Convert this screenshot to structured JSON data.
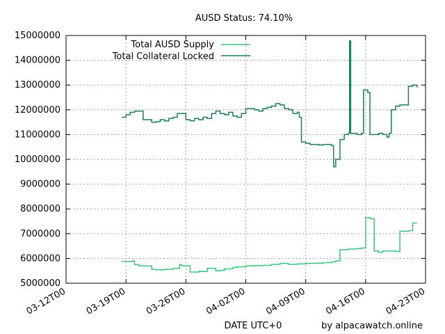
{
  "chart_data": {
    "type": "line",
    "title": "AUSD Status: 74.10%",
    "xlabel": "DATE UTC+0",
    "ylabel": "",
    "credit": "by alpacawatch.online",
    "ylim": [
      5000000,
      15000000
    ],
    "xlim": [
      "2022-03-12",
      "2022-04-23"
    ],
    "y_ticks": [
      "5000000",
      "6000000",
      "7000000",
      "8000000",
      "9000000",
      "10000000",
      "11000000",
      "12000000",
      "13000000",
      "14000000",
      "15000000"
    ],
    "x_ticks": [
      "03-12T00",
      "03-19T00",
      "03-26T00",
      "04-02T00",
      "04-09T00",
      "04-16T00",
      "04-23T00"
    ],
    "grid": true,
    "legend_position": "top-left",
    "series": [
      {
        "name": "Total AUSD Supply",
        "color": "#3cc47c",
        "x": [
          "2022-03-18T12",
          "2022-03-19T18",
          "2022-03-20T00",
          "2022-03-20T12",
          "2022-03-21T06",
          "2022-03-22T00",
          "2022-03-22T12",
          "2022-03-23T12",
          "2022-03-24T12",
          "2022-03-25T06",
          "2022-03-25T12",
          "2022-03-26T12",
          "2022-03-27T12",
          "2022-03-28T00",
          "2022-03-28T12",
          "2022-03-29T12",
          "2022-03-30T00",
          "2022-03-30T12",
          "2022-03-31T12",
          "2022-04-01T00",
          "2022-04-02T00",
          "2022-04-03T00",
          "2022-04-04T00",
          "2022-04-05T00",
          "2022-04-06T00",
          "2022-04-07T00",
          "2022-04-08T00",
          "2022-04-09T00",
          "2022-04-10T00",
          "2022-04-11T00",
          "2022-04-12T00",
          "2022-04-12T12",
          "2022-04-13T00",
          "2022-04-14T00",
          "2022-04-15T00",
          "2022-04-15T12",
          "2022-04-16T00",
          "2022-04-16T12",
          "2022-04-17T00",
          "2022-04-17T12",
          "2022-04-18T00",
          "2022-04-19T00",
          "2022-04-19T12",
          "2022-04-20T00",
          "2022-04-21T00",
          "2022-04-21T12",
          "2022-04-22T00"
        ],
        "y": [
          5880000,
          5900000,
          5750000,
          5700000,
          5700000,
          5560000,
          5540000,
          5560000,
          5600000,
          5750000,
          5700000,
          5450000,
          5480000,
          5470000,
          5600000,
          5500000,
          5520000,
          5580000,
          5640000,
          5660000,
          5700000,
          5710000,
          5720000,
          5760000,
          5800000,
          5760000,
          5780000,
          5800000,
          5810000,
          5830000,
          5860000,
          5900000,
          6350000,
          6380000,
          6400000,
          6420000,
          7650000,
          7600000,
          6300000,
          6250000,
          6300000,
          6300000,
          6280000,
          7100000,
          7120000,
          7430000,
          7430000
        ]
      },
      {
        "name": "Total Collateral Locked",
        "color": "#1e7d55",
        "x": [
          "2022-03-18T12",
          "2022-03-19T00",
          "2022-03-19T12",
          "2022-03-20T00",
          "2022-03-20T12",
          "2022-03-21T00",
          "2022-03-21T12",
          "2022-03-22T00",
          "2022-03-22T12",
          "2022-03-23T00",
          "2022-03-23T12",
          "2022-03-24T00",
          "2022-03-24T12",
          "2022-03-25T00",
          "2022-03-25T12",
          "2022-03-26T00",
          "2022-03-26T12",
          "2022-03-27T00",
          "2022-03-27T12",
          "2022-03-28T00",
          "2022-03-28T12",
          "2022-03-29T00",
          "2022-03-29T12",
          "2022-03-30T00",
          "2022-03-30T12",
          "2022-03-31T00",
          "2022-03-31T12",
          "2022-04-01T00",
          "2022-04-01T12",
          "2022-04-02T00",
          "2022-04-02T12",
          "2022-04-03T00",
          "2022-04-03T12",
          "2022-04-04T00",
          "2022-04-04T12",
          "2022-04-05T00",
          "2022-04-05T12",
          "2022-04-06T00",
          "2022-04-06T12",
          "2022-04-07T00",
          "2022-04-07T12",
          "2022-04-08T00",
          "2022-04-08T06",
          "2022-04-08T12",
          "2022-04-09T00",
          "2022-04-09T12",
          "2022-04-10T00",
          "2022-04-10T12",
          "2022-04-11T00",
          "2022-04-11T12",
          "2022-04-12T00",
          "2022-04-12T06",
          "2022-04-12T12",
          "2022-04-13T00",
          "2022-04-13T12",
          "2022-04-14T00",
          "2022-04-14T03",
          "2022-04-14T06",
          "2022-04-14T12",
          "2022-04-15T00",
          "2022-04-15T12",
          "2022-04-15T18",
          "2022-04-16T00",
          "2022-04-16T06",
          "2022-04-16T12",
          "2022-04-17T00",
          "2022-04-17T12",
          "2022-04-18T00",
          "2022-04-18T12",
          "2022-04-18T18",
          "2022-04-19T00",
          "2022-04-19T12",
          "2022-04-20T00",
          "2022-04-20T12",
          "2022-04-21T00",
          "2022-04-21T12",
          "2022-04-22T00"
        ],
        "y": [
          11700000,
          11800000,
          11900000,
          11950000,
          11950000,
          11600000,
          11600000,
          11500000,
          11520000,
          11600000,
          11550000,
          11650000,
          11700000,
          11850000,
          11850000,
          11600000,
          11550000,
          11650000,
          11600000,
          11700000,
          11650000,
          11850000,
          11950000,
          11850000,
          11800000,
          11900000,
          11750000,
          11700000,
          11850000,
          12050000,
          12050000,
          12000000,
          11950000,
          12050000,
          12100000,
          12150000,
          12250000,
          12200000,
          12050000,
          12000000,
          11850000,
          11900000,
          11700000,
          10700000,
          10650000,
          10600000,
          10600000,
          10580000,
          10600000,
          10600000,
          10550000,
          9700000,
          10000000,
          10800000,
          11000000,
          11050000,
          14780000,
          11050000,
          11050000,
          11000000,
          11050000,
          12800000,
          12800000,
          12700000,
          11000000,
          11000000,
          11050000,
          11000000,
          10900000,
          11050000,
          12000000,
          12150000,
          12200000,
          12200000,
          12950000,
          13000000,
          12900000
        ]
      }
    ]
  }
}
